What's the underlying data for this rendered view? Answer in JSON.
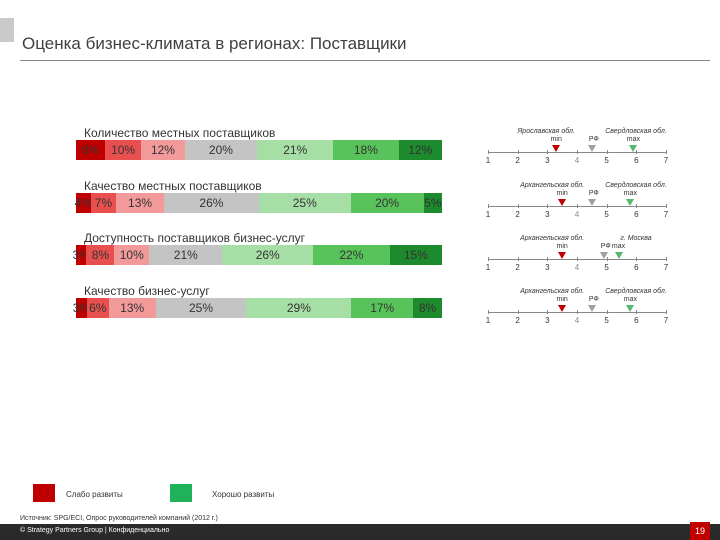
{
  "title": "Оценка бизнес-климата в регионах: Поставщики",
  "colors": [
    "#c00000",
    "#e85050",
    "#f29a9a",
    "#c4c4c4",
    "#a6dfa6",
    "#57c35a",
    "#1e8a2e"
  ],
  "chart_data": {
    "type": "bar",
    "orientation": "horizontal",
    "stacked": true,
    "normalized": true,
    "categories": [
      "Количество местных поставщиков",
      "Качество местных поставщиков",
      "Доступность поставщиков бизнес-услуг",
      "Качество бизнес-услуг"
    ],
    "series": [
      {
        "values": [
          8,
          4,
          3,
          3
        ],
        "labels": [
          "8%",
          "4%",
          "3%",
          "3%"
        ]
      },
      {
        "values": [
          10,
          7,
          8,
          6
        ],
        "labels": [
          "10%",
          "7%",
          "8%",
          "6%"
        ]
      },
      {
        "values": [
          12,
          13,
          10,
          13
        ],
        "labels": [
          "12%",
          "13%",
          "10%",
          "13%"
        ]
      },
      {
        "values": [
          20,
          26,
          21,
          25
        ],
        "labels": [
          "20%",
          "26%",
          "21%",
          "25%"
        ]
      },
      {
        "values": [
          21,
          25,
          26,
          29
        ],
        "labels": [
          "21%",
          "25%",
          "26%",
          "29%"
        ]
      },
      {
        "values": [
          18,
          20,
          22,
          17
        ],
        "labels": [
          "18%",
          "20%",
          "22%",
          "17%"
        ]
      },
      {
        "values": [
          12,
          5,
          15,
          8
        ],
        "labels": [
          "12%",
          "5%",
          "15%",
          "8%"
        ]
      }
    ],
    "legend": [
      {
        "label": "Слабо развиты",
        "color": "#c00000"
      },
      {
        "label": "Хорошо развиты",
        "color": "#1fb25a"
      }
    ]
  },
  "scales": {
    "ticks": [
      "1",
      "2",
      "3",
      "4",
      "5",
      "6",
      "7"
    ],
    "rows": [
      {
        "min_region": "Ярославская обл.",
        "max_region": "Свердловская обл.",
        "min_label": "min",
        "max_label": "max",
        "rf_label": "РФ",
        "min": 3.3,
        "rf": 4.5,
        "max": 5.9
      },
      {
        "min_region": "Архангельская обл.",
        "max_region": "Свердловская обл.",
        "min_label": "min",
        "max_label": "max",
        "rf_label": "РФ",
        "min": 3.5,
        "rf": 4.5,
        "max": 5.8
      },
      {
        "min_region": "Архангельская обл.",
        "max_region": "г. Москва",
        "min_label": "min",
        "max_label": "max",
        "rf_label": "РФ",
        "min": 3.5,
        "rf": 4.9,
        "max": 5.4
      },
      {
        "min_region": "Архангельская обл.",
        "max_region": "Свердловская обл.",
        "min_label": "min",
        "max_label": "max",
        "rf_label": "РФ",
        "min": 3.5,
        "rf": 4.5,
        "max": 5.8
      }
    ]
  },
  "source": "Источник: SPG/ECI, Опрос руководителей компаний (2012 г.)",
  "footer": "© Strategy Partners Group | Конфиденциально",
  "page_number": "19"
}
